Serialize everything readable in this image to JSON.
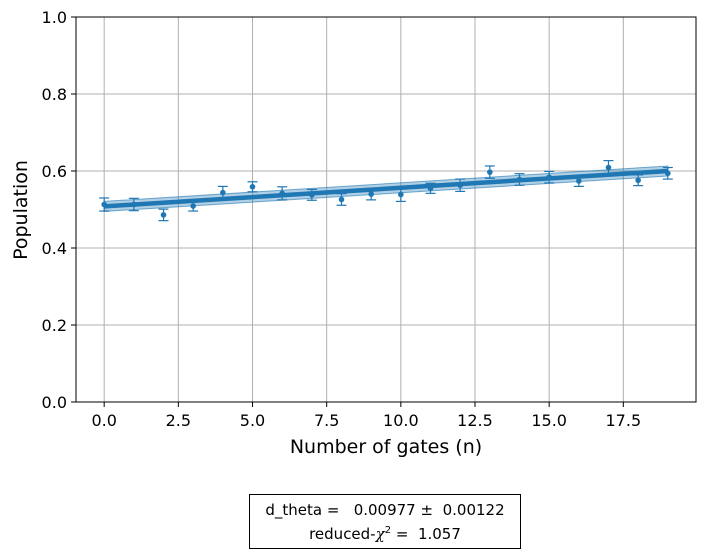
{
  "chart_data": {
    "type": "scatter",
    "xlabel": "Number of gates (n)",
    "ylabel": "Population",
    "xlim": [
      -0.95,
      19.95
    ],
    "ylim": [
      0.0,
      1.0
    ],
    "xticks": [
      0.0,
      2.5,
      5.0,
      7.5,
      10.0,
      12.5,
      15.0,
      17.5
    ],
    "xtick_labels": [
      "0.0",
      "2.5",
      "5.0",
      "7.5",
      "10.0",
      "12.5",
      "15.0",
      "17.5"
    ],
    "yticks": [
      0.0,
      0.2,
      0.4,
      0.6,
      0.8,
      1.0
    ],
    "ytick_labels": [
      "0.0",
      "0.2",
      "0.4",
      "0.6",
      "0.8",
      "1.0"
    ],
    "grid": true,
    "series": [
      {
        "kind": "errorbar",
        "x": [
          0,
          1,
          2,
          3,
          4,
          5,
          6,
          7,
          8,
          9,
          10,
          11,
          12,
          13,
          14,
          15,
          16,
          17,
          18,
          19
        ],
        "y": [
          0.513,
          0.513,
          0.486,
          0.509,
          0.544,
          0.559,
          0.542,
          0.538,
          0.526,
          0.54,
          0.539,
          0.555,
          0.563,
          0.597,
          0.578,
          0.584,
          0.574,
          0.609,
          0.576,
          0.594
        ],
        "yerr": [
          0.017,
          0.016,
          0.015,
          0.013,
          0.016,
          0.013,
          0.017,
          0.014,
          0.015,
          0.015,
          0.018,
          0.013,
          0.016,
          0.016,
          0.015,
          0.015,
          0.014,
          0.018,
          0.014,
          0.015
        ]
      },
      {
        "kind": "fit",
        "x": [
          0,
          19
        ],
        "y": [
          0.508,
          0.6
        ],
        "band_half_width": 0.013
      }
    ],
    "colors": {
      "points": "#1f77b4",
      "fit_line": "#1f77b4",
      "band": "#1f77b4",
      "grid": "#b0b0b0"
    }
  },
  "fit_box": {
    "line1": "d_theta =   0.00977 ±  0.00122",
    "line2_prefix": "reduced-",
    "line2_symbol": "χ",
    "line2_sup": "2",
    "line2_suffix": " =  1.057"
  }
}
